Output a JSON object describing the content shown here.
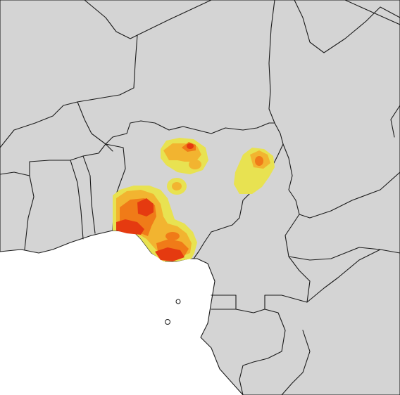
{
  "map": {
    "colors": {
      "land": "#d4d4d4",
      "sea": "#ffffff",
      "border": "#1a1a1a",
      "density_low": "#e8e251",
      "density_medium": "#f2b430",
      "density_high": "#f07b18",
      "density_peak": "#e53a10"
    }
  }
}
